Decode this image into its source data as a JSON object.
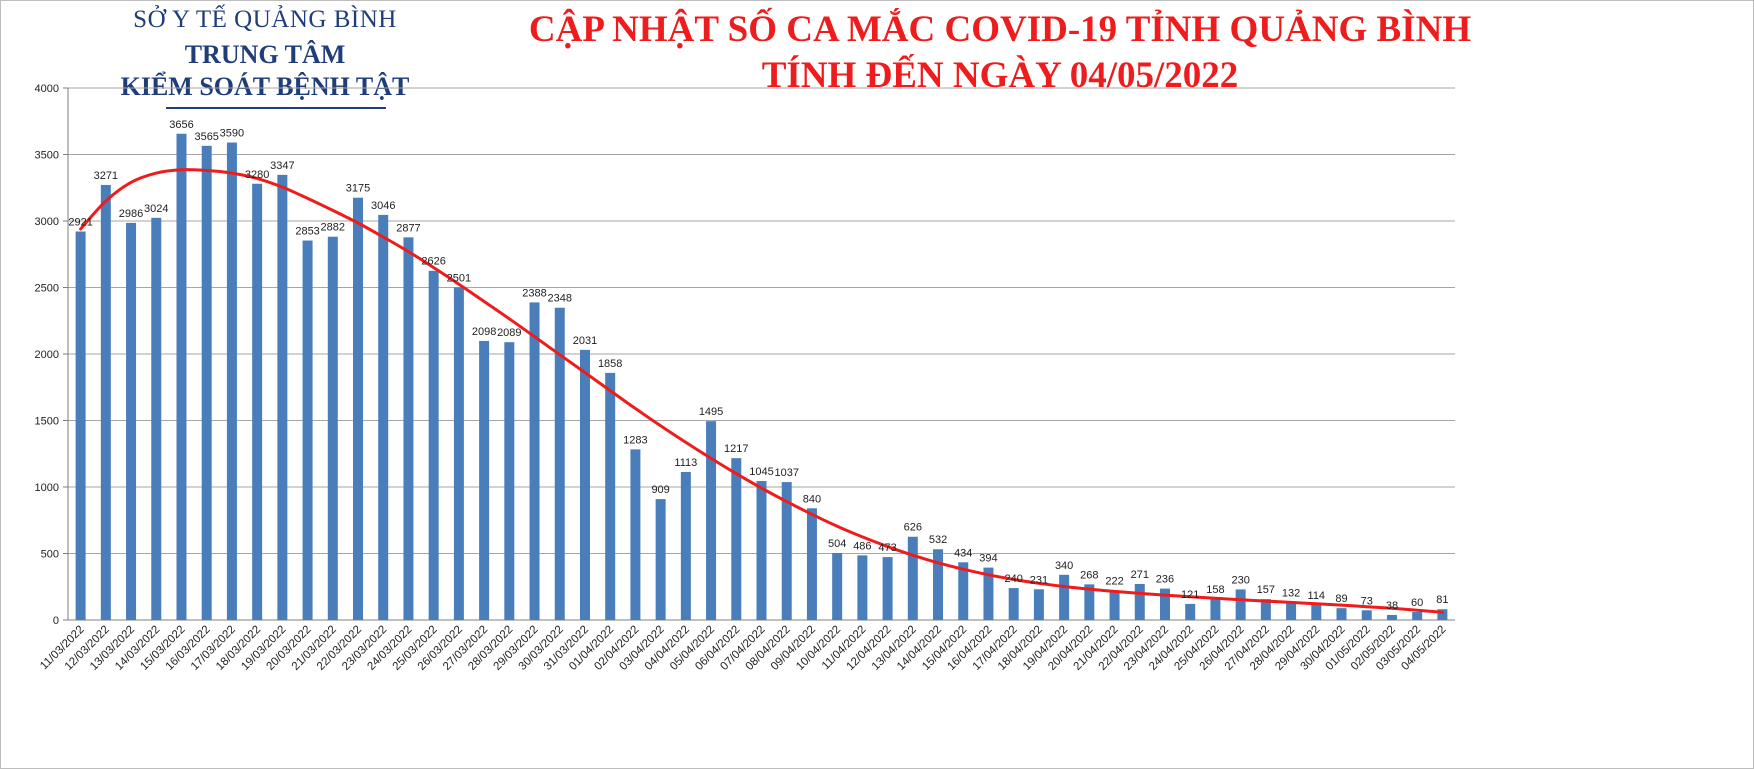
{
  "header": {
    "org_line1": "SỞ Y TẾ QUẢNG BÌNH",
    "org_line2": "TRUNG TÂM",
    "org_line3": "KIỂM SOÁT BỆNH TẬT",
    "title_line1": "CẬP NHẬT SỐ CA MẮC COVID-19 TỈNH QUẢNG BÌNH",
    "title_line2": "TÍNH ĐẾN NGÀY 04/05/2022"
  },
  "colors": {
    "bar": "#4a7ebb",
    "trend": "#ee1c1c",
    "grid": "#a6a6a6",
    "title": "#ee1c1c",
    "org": "#1f3d7a"
  },
  "chart_data": {
    "type": "bar",
    "title": "CẬP NHẬT SỐ CA MẮC COVID-19 TỈNH QUẢNG BÌNH",
    "subtitle": "TÍNH ĐẾN NGÀY 04/05/2022",
    "xlabel": "",
    "ylabel": "",
    "ylim": [
      0,
      4000
    ],
    "yticks": [
      0,
      500,
      1000,
      1500,
      2000,
      2500,
      3000,
      3500,
      4000
    ],
    "grid": true,
    "legend": "none",
    "trendline": "polynomial",
    "categories": [
      "11/03/2022",
      "12/03/2022",
      "13/03/2022",
      "14/03/2022",
      "15/03/2022",
      "16/03/2022",
      "17/03/2022",
      "18/03/2022",
      "19/03/2022",
      "20/03/2022",
      "21/03/2022",
      "22/03/2022",
      "23/03/2022",
      "24/03/2022",
      "25/03/2022",
      "26/03/2022",
      "27/03/2022",
      "28/03/2022",
      "29/03/2022",
      "30/03/2022",
      "31/03/2022",
      "01/04/2022",
      "02/04/2022",
      "03/04/2022",
      "04/04/2022",
      "05/04/2022",
      "06/04/2022",
      "07/04/2022",
      "08/04/2022",
      "09/04/2022",
      "10/04/2022",
      "11/04/2022",
      "12/04/2022",
      "13/04/2022",
      "14/04/2022",
      "15/04/2022",
      "16/04/2022",
      "17/04/2022",
      "18/04/2022",
      "19/04/2022",
      "20/04/2022",
      "21/04/2022",
      "22/04/2022",
      "23/04/2022",
      "24/04/2022",
      "25/04/2022",
      "26/04/2022",
      "27/04/2022",
      "28/04/2022",
      "29/04/2022",
      "30/04/2022",
      "01/05/2022",
      "02/05/2022",
      "03/05/2022",
      "04/05/2022"
    ],
    "values": [
      2921,
      3271,
      2986,
      3024,
      3656,
      3565,
      3590,
      3280,
      3347,
      2853,
      2882,
      3175,
      3046,
      2877,
      2626,
      2501,
      2098,
      2089,
      2388,
      2348,
      2031,
      1858,
      1283,
      909,
      1113,
      1495,
      1217,
      1045,
      1037,
      840,
      504,
      486,
      473,
      626,
      532,
      434,
      394,
      240,
      231,
      340,
      268,
      222,
      271,
      236,
      121,
      158,
      230,
      157,
      132,
      114,
      89,
      73,
      38,
      60,
      81
    ],
    "value_labels": [
      "2921",
      "3271",
      "2986",
      "3024",
      "3656",
      "3565",
      "3590",
      "3280",
      "3347",
      "2853",
      "2882",
      "3175",
      "3046",
      "2877",
      "2626",
      "2501",
      "2098",
      "2089",
      "2388",
      "2348",
      "2031",
      "1858",
      "1283",
      "909",
      "1113",
      "1495",
      "1217",
      "1045",
      "1037",
      "840",
      "504",
      "486",
      "473",
      "626",
      "532",
      "434",
      "394",
      "240",
      "231",
      "340",
      "268",
      "222",
      "271",
      "236",
      "121",
      "158",
      "230",
      "157",
      "132",
      "114",
      "89",
      "73",
      "38",
      "60",
      "81"
    ],
    "trend_values": [
      2940,
      3150,
      3290,
      3360,
      3385,
      3380,
      3360,
      3320,
      3255,
      3170,
      3080,
      2985,
      2880,
      2770,
      2650,
      2525,
      2395,
      2265,
      2130,
      1995,
      1860,
      1725,
      1590,
      1460,
      1335,
      1215,
      1100,
      992,
      890,
      795,
      705,
      625,
      552,
      487,
      430,
      382,
      340,
      305,
      276,
      252,
      232,
      215,
      200,
      187,
      175,
      163,
      152,
      142,
      132,
      122,
      112,
      100,
      88,
      74,
      58
    ]
  }
}
